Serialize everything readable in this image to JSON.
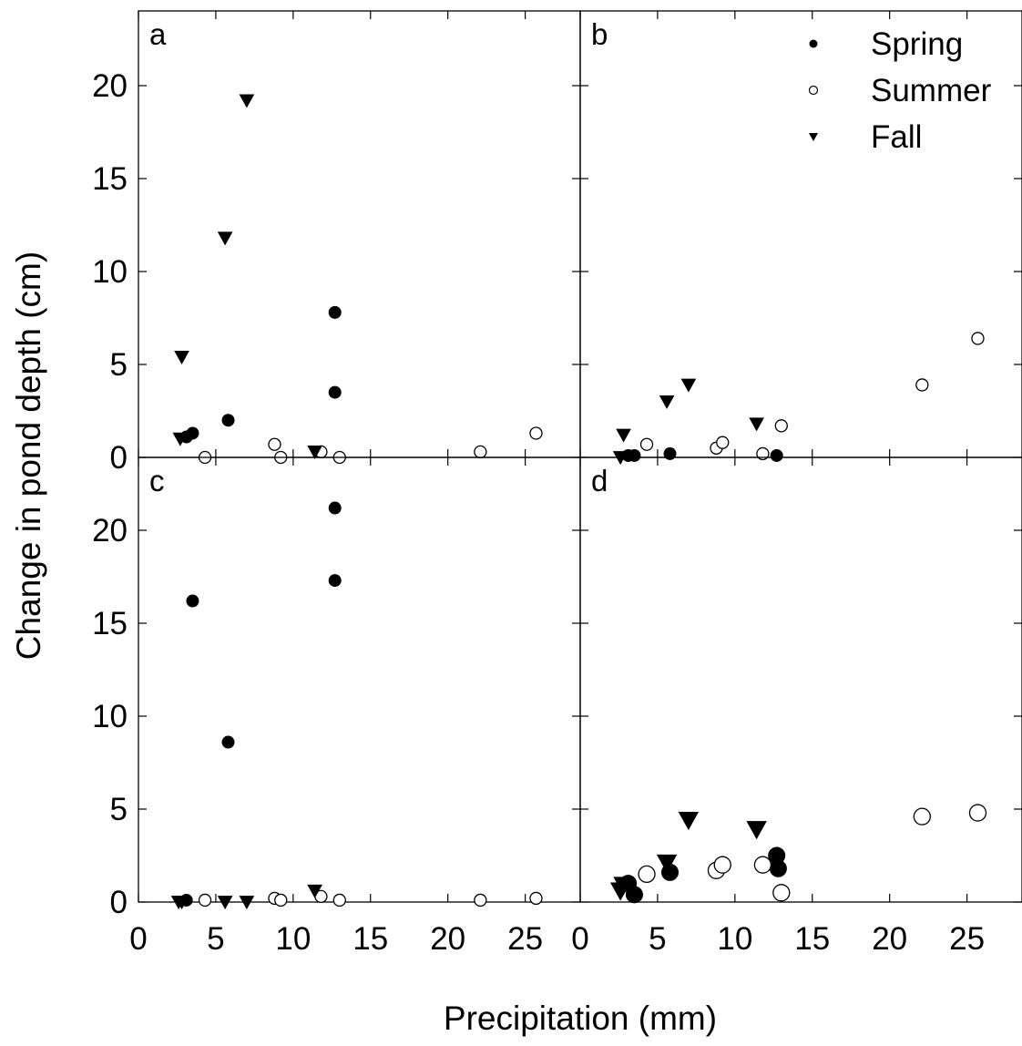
{
  "chart_data": {
    "type": "scatter",
    "xlabel": "Precipitation (mm)",
    "ylabel": "Change in pond depth (cm)",
    "xlim": [
      0,
      28.5
    ],
    "ylim": [
      0,
      24
    ],
    "x_ticks": [
      0,
      5,
      10,
      15,
      20,
      25
    ],
    "y_ticks": [
      0,
      5,
      10,
      15,
      20
    ],
    "grid": false,
    "legend": {
      "placement": "top-right of panel b",
      "entries": [
        "Spring",
        "Summer",
        "Fall"
      ]
    },
    "panels": [
      {
        "label": "a",
        "series": [
          {
            "name": "Spring",
            "marker": "filled-circle",
            "points": [
              [
                3.1,
                1.1
              ],
              [
                3.5,
                1.3
              ],
              [
                5.8,
                2.0
              ],
              [
                12.7,
                7.8
              ],
              [
                12.7,
                3.5
              ]
            ]
          },
          {
            "name": "Summer",
            "marker": "open-circle",
            "points": [
              [
                4.3,
                0.0
              ],
              [
                8.8,
                0.7
              ],
              [
                9.2,
                0.0
              ],
              [
                11.8,
                0.3
              ],
              [
                13.0,
                0.0
              ],
              [
                22.1,
                0.3
              ],
              [
                25.7,
                1.3
              ]
            ]
          },
          {
            "name": "Fall",
            "marker": "filled-triangle",
            "points": [
              [
                2.7,
                1.0
              ],
              [
                2.8,
                5.4
              ],
              [
                5.6,
                11.8
              ],
              [
                7.0,
                19.2
              ],
              [
                11.4,
                0.3
              ]
            ]
          }
        ]
      },
      {
        "label": "b",
        "series": [
          {
            "name": "Spring",
            "marker": "filled-circle",
            "points": [
              [
                3.1,
                0.1
              ],
              [
                3.5,
                0.1
              ],
              [
                5.8,
                0.2
              ],
              [
                12.7,
                0.1
              ]
            ]
          },
          {
            "name": "Summer",
            "marker": "open-circle",
            "points": [
              [
                4.3,
                0.7
              ],
              [
                8.8,
                0.5
              ],
              [
                9.2,
                0.8
              ],
              [
                11.8,
                0.2
              ],
              [
                13.0,
                1.7
              ],
              [
                22.1,
                3.9
              ],
              [
                25.7,
                6.4
              ]
            ]
          },
          {
            "name": "Fall",
            "marker": "filled-triangle",
            "points": [
              [
                2.6,
                0.0
              ],
              [
                2.8,
                1.2
              ],
              [
                5.6,
                3.0
              ],
              [
                7.0,
                3.9
              ],
              [
                11.4,
                1.8
              ]
            ]
          }
        ]
      },
      {
        "label": "c",
        "series": [
          {
            "name": "Spring",
            "marker": "filled-circle",
            "points": [
              [
                3.1,
                0.1
              ],
              [
                3.5,
                16.2
              ],
              [
                5.8,
                8.6
              ],
              [
                12.7,
                21.2
              ],
              [
                12.7,
                17.3
              ]
            ]
          },
          {
            "name": "Summer",
            "marker": "open-circle",
            "points": [
              [
                4.3,
                0.1
              ],
              [
                8.8,
                0.2
              ],
              [
                9.2,
                0.1
              ],
              [
                11.8,
                0.3
              ],
              [
                13.0,
                0.1
              ],
              [
                22.1,
                0.1
              ],
              [
                25.7,
                0.2
              ]
            ]
          },
          {
            "name": "Fall",
            "marker": "filled-triangle",
            "points": [
              [
                2.6,
                0.0
              ],
              [
                2.8,
                0.0
              ],
              [
                5.6,
                0.0
              ],
              [
                7.0,
                0.0
              ],
              [
                11.4,
                0.6
              ]
            ]
          }
        ]
      },
      {
        "label": "d",
        "series": [
          {
            "name": "Spring",
            "marker": "filled-circle",
            "points": [
              [
                3.1,
                1.0
              ],
              [
                3.5,
                0.4
              ],
              [
                5.8,
                1.6
              ],
              [
                12.7,
                2.5
              ],
              [
                12.8,
                1.8
              ]
            ]
          },
          {
            "name": "Summer",
            "marker": "open-circle",
            "points": [
              [
                4.3,
                1.5
              ],
              [
                8.8,
                1.7
              ],
              [
                9.2,
                2.0
              ],
              [
                11.8,
                2.0
              ],
              [
                13.0,
                0.5
              ],
              [
                22.1,
                4.6
              ],
              [
                25.7,
                4.8
              ]
            ]
          },
          {
            "name": "Fall",
            "marker": "filled-triangle",
            "points": [
              [
                2.6,
                0.6
              ],
              [
                2.8,
                0.9
              ],
              [
                5.6,
                2.1
              ],
              [
                7.0,
                4.4
              ],
              [
                11.4,
                3.9
              ]
            ]
          }
        ]
      }
    ]
  }
}
